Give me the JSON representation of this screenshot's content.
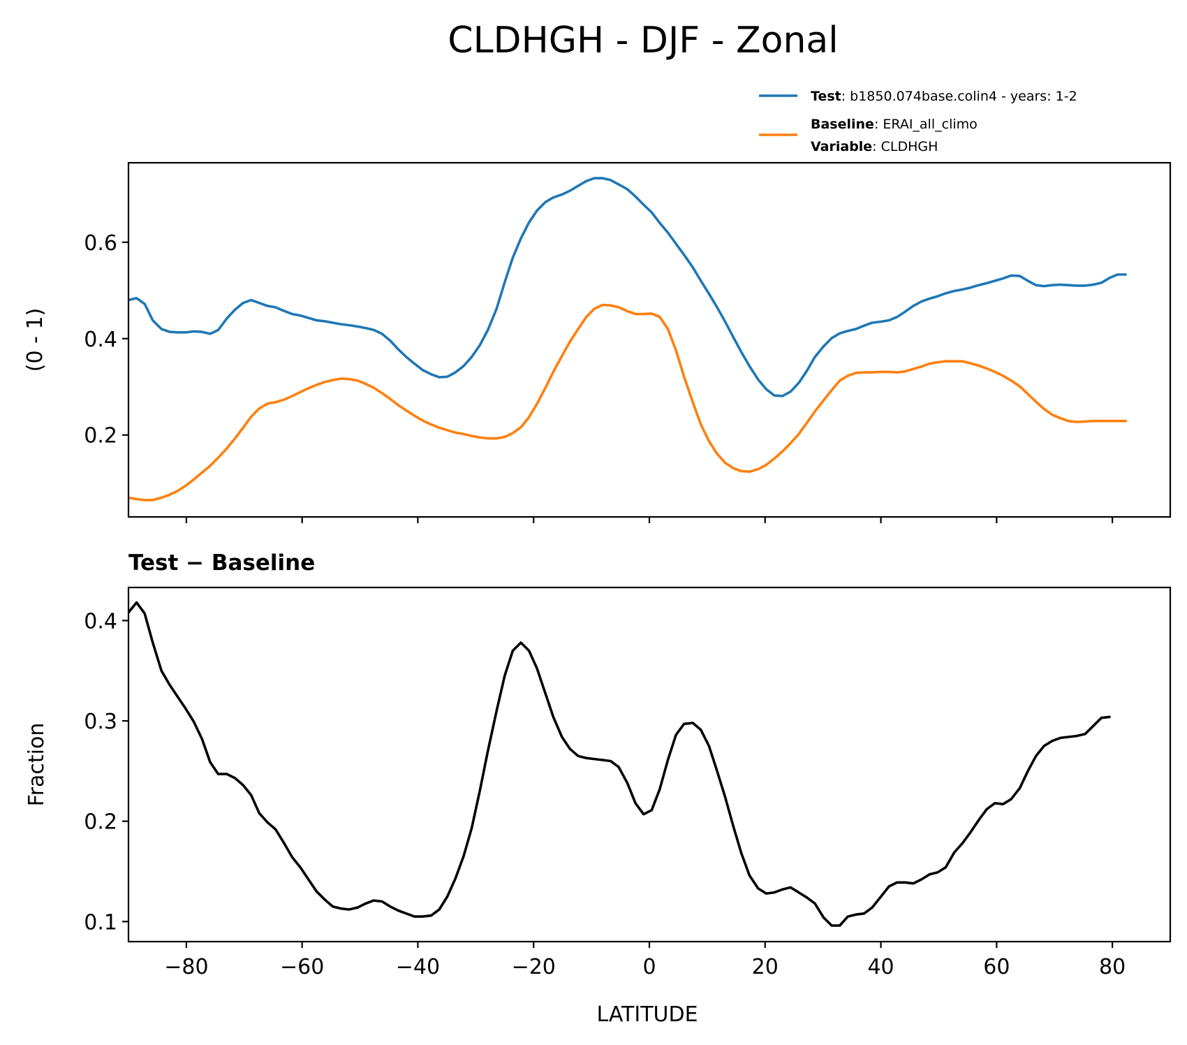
{
  "chart_data": {
    "title": "CLDHGH - DJF - Zonal",
    "x": [
      -90,
      -88.6,
      -87.2,
      -85.8,
      -84.3,
      -82.9,
      -81.5,
      -80.1,
      -78.7,
      -77.3,
      -75.9,
      -74.5,
      -73.0,
      -71.6,
      -70.2,
      -68.8,
      -67.4,
      -66.0,
      -64.6,
      -63.2,
      -61.7,
      -60.3,
      -58.9,
      -57.5,
      -56.1,
      -54.7,
      -53.3,
      -51.9,
      -50.4,
      -49.0,
      -47.6,
      -46.2,
      -44.8,
      -43.4,
      -42.0,
      -40.6,
      -39.2,
      -37.7,
      -36.3,
      -34.9,
      -33.5,
      -32.1,
      -30.7,
      -29.3,
      -27.9,
      -26.4,
      -25.0,
      -23.6,
      -22.2,
      -20.8,
      -19.4,
      -18.0,
      -16.6,
      -15.1,
      -13.7,
      -12.3,
      -10.9,
      -9.5,
      -8.1,
      -6.7,
      -5.3,
      -3.8,
      -2.4,
      -1.0,
      0.4,
      1.8,
      3.2,
      4.6,
      6.0,
      7.5,
      8.9,
      10.3,
      11.7,
      13.1,
      14.5,
      15.9,
      17.3,
      18.8,
      20.2,
      21.6,
      23.0,
      24.4,
      25.8,
      27.2,
      28.6,
      30.1,
      31.5,
      32.9,
      34.3,
      35.7,
      37.1,
      38.5,
      39.9,
      41.4,
      42.8,
      44.2,
      45.6,
      47.0,
      48.4,
      49.8,
      51.2,
      52.7,
      54.1,
      55.5,
      56.9,
      58.3,
      59.7,
      61.1,
      62.5,
      64.0,
      65.4,
      66.8,
      68.2,
      69.6,
      71.0,
      72.4,
      73.8,
      75.3,
      76.7,
      78.1,
      79.5,
      80.9,
      82.3,
      83.7,
      85.1,
      86.6,
      88.0,
      89.4,
      90
    ],
    "panels": [
      {
        "ylabel": "(0 - 1)",
        "ylim": [
          0.03,
          0.765
        ],
        "yticks": [
          0.2,
          0.4,
          0.6
        ],
        "ytick_labels": [
          "0.2",
          "0.4",
          "0.6"
        ],
        "series": [
          {
            "name": "Test",
            "color": "#1f77b4",
            "values": [
              0.48,
              0.484,
              0.472,
              0.438,
              0.42,
              0.414,
              0.413,
              0.413,
              0.415,
              0.414,
              0.41,
              0.418,
              0.442,
              0.46,
              0.474,
              0.48,
              0.474,
              0.468,
              0.465,
              0.458,
              0.451,
              0.448,
              0.443,
              0.438,
              0.436,
              0.433,
              0.43,
              0.428,
              0.425,
              0.422,
              0.418,
              0.41,
              0.396,
              0.378,
              0.362,
              0.348,
              0.335,
              0.326,
              0.32,
              0.321,
              0.33,
              0.343,
              0.362,
              0.386,
              0.418,
              0.462,
              0.517,
              0.568,
              0.608,
              0.641,
              0.666,
              0.683,
              0.693,
              0.699,
              0.707,
              0.717,
              0.727,
              0.733,
              0.733,
              0.729,
              0.72,
              0.71,
              0.695,
              0.678,
              0.662,
              0.64,
              0.62,
              0.597,
              0.574,
              0.548,
              0.52,
              0.493,
              0.465,
              0.435,
              0.403,
              0.372,
              0.343,
              0.315,
              0.295,
              0.282,
              0.281,
              0.29,
              0.308,
              0.333,
              0.362,
              0.384,
              0.401,
              0.411,
              0.416,
              0.42,
              0.427,
              0.433,
              0.435,
              0.438,
              0.445,
              0.456,
              0.468,
              0.477,
              0.483,
              0.488,
              0.494,
              0.499,
              0.502,
              0.506,
              0.511,
              0.515,
              0.52,
              0.525,
              0.531,
              0.53,
              0.52,
              0.511,
              0.509,
              0.511,
              0.512,
              0.511,
              0.51,
              0.51,
              0.512,
              0.516,
              0.526,
              0.533,
              0.533
            ]
          },
          {
            "name": "Baseline",
            "color": "#ff7f0e",
            "values": [
              0.07,
              0.067,
              0.065,
              0.065,
              0.07,
              0.076,
              0.084,
              0.095,
              0.108,
              0.122,
              0.136,
              0.153,
              0.172,
              0.193,
              0.215,
              0.238,
              0.255,
              0.265,
              0.268,
              0.273,
              0.281,
              0.289,
              0.297,
              0.304,
              0.31,
              0.314,
              0.317,
              0.316,
              0.313,
              0.306,
              0.298,
              0.287,
              0.275,
              0.262,
              0.251,
              0.24,
              0.23,
              0.222,
              0.215,
              0.21,
              0.205,
              0.202,
              0.198,
              0.195,
              0.193,
              0.193,
              0.196,
              0.204,
              0.216,
              0.237,
              0.265,
              0.297,
              0.331,
              0.364,
              0.394,
              0.42,
              0.445,
              0.462,
              0.47,
              0.469,
              0.465,
              0.457,
              0.451,
              0.451,
              0.452,
              0.445,
              0.42,
              0.376,
              0.321,
              0.268,
              0.222,
              0.187,
              0.161,
              0.142,
              0.131,
              0.125,
              0.124,
              0.129,
              0.138,
              0.151,
              0.166,
              0.183,
              0.202,
              0.225,
              0.249,
              0.272,
              0.293,
              0.313,
              0.323,
              0.329,
              0.33,
              0.33,
              0.331,
              0.331,
              0.33,
              0.332,
              0.337,
              0.342,
              0.348,
              0.351,
              0.353,
              0.353,
              0.353,
              0.349,
              0.344,
              0.338,
              0.331,
              0.323,
              0.313,
              0.301,
              0.285,
              0.269,
              0.254,
              0.242,
              0.235,
              0.229,
              0.227,
              0.228,
              0.229,
              0.229,
              0.229,
              0.229,
              0.229
            ]
          }
        ]
      },
      {
        "subtitle": "Test − Baseline",
        "ylabel": "Fraction",
        "ylim": [
          0.08,
          0.433
        ],
        "yticks": [
          0.1,
          0.2,
          0.3,
          0.4
        ],
        "ytick_labels": [
          "0.1",
          "0.2",
          "0.3",
          "0.4"
        ],
        "series": [
          {
            "name": "Test - Baseline",
            "color": "#000000",
            "values": [
              0.408,
              0.418,
              0.407,
              0.378,
              0.35,
              0.336,
              0.324,
              0.312,
              0.299,
              0.282,
              0.259,
              0.247,
              0.247,
              0.243,
              0.236,
              0.226,
              0.208,
              0.199,
              0.192,
              0.179,
              0.164,
              0.154,
              0.142,
              0.13,
              0.122,
              0.115,
              0.113,
              0.112,
              0.114,
              0.118,
              0.121,
              0.12,
              0.115,
              0.111,
              0.108,
              0.105,
              0.105,
              0.106,
              0.112,
              0.125,
              0.143,
              0.165,
              0.193,
              0.23,
              0.27,
              0.31,
              0.345,
              0.37,
              0.378,
              0.37,
              0.352,
              0.328,
              0.304,
              0.284,
              0.272,
              0.265,
              0.263,
              0.262,
              0.261,
              0.26,
              0.254,
              0.238,
              0.218,
              0.207,
              0.211,
              0.232,
              0.261,
              0.286,
              0.297,
              0.298,
              0.291,
              0.275,
              0.25,
              0.224,
              0.195,
              0.168,
              0.146,
              0.133,
              0.128,
              0.129,
              0.132,
              0.134,
              0.129,
              0.124,
              0.118,
              0.104,
              0.096,
              0.096,
              0.105,
              0.107,
              0.108,
              0.114,
              0.124,
              0.135,
              0.139,
              0.139,
              0.138,
              0.142,
              0.147,
              0.149,
              0.154,
              0.169,
              0.178,
              0.189,
              0.201,
              0.212,
              0.218,
              0.217,
              0.222,
              0.233,
              0.25,
              0.265,
              0.275,
              0.28,
              0.283,
              0.284,
              0.285,
              0.287,
              0.295,
              0.303,
              0.304
            ]
          }
        ]
      }
    ],
    "xlabel": "LATITUDE",
    "xlim": [
      -90,
      90
    ],
    "xticks": [
      -80,
      -60,
      -40,
      -20,
      0,
      20,
      40,
      60,
      80
    ],
    "xtick_labels": [
      "−80",
      "−60",
      "−40",
      "−20",
      "0",
      "20",
      "40",
      "60",
      "80"
    ],
    "legend": {
      "position": "top-right",
      "entries": [
        {
          "color": "#1f77b4",
          "lines": [
            {
              "bold": "Test",
              "text": ": b1850.074base.colin4 - years: 1-2"
            }
          ]
        },
        {
          "color": "#ff7f0e",
          "lines": [
            {
              "bold": "Baseline",
              "text": ": ERAI_all_climo"
            },
            {
              "bold": "Variable",
              "text": ": CLDHGH"
            }
          ]
        }
      ]
    }
  }
}
